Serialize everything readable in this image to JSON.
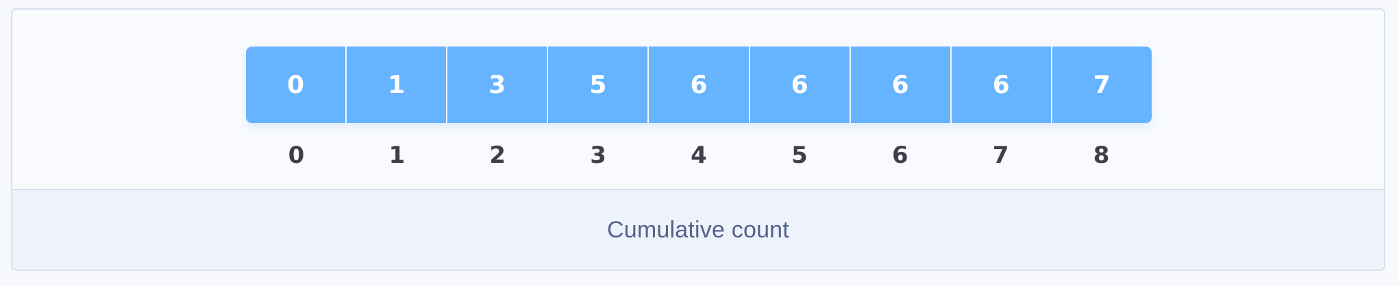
{
  "array": {
    "values": [
      "0",
      "1",
      "3",
      "5",
      "6",
      "6",
      "6",
      "6",
      "7"
    ],
    "indices": [
      "0",
      "1",
      "2",
      "3",
      "4",
      "5",
      "6",
      "7",
      "8"
    ]
  },
  "caption": "Cumulative count",
  "colors": {
    "cell_fill": "#66b3ff",
    "cell_text": "#ffffff",
    "index_text": "#3f3f4c",
    "caption_text": "#55628a",
    "caption_background": "#eef3fb",
    "panel_border": "#d7dfec"
  }
}
